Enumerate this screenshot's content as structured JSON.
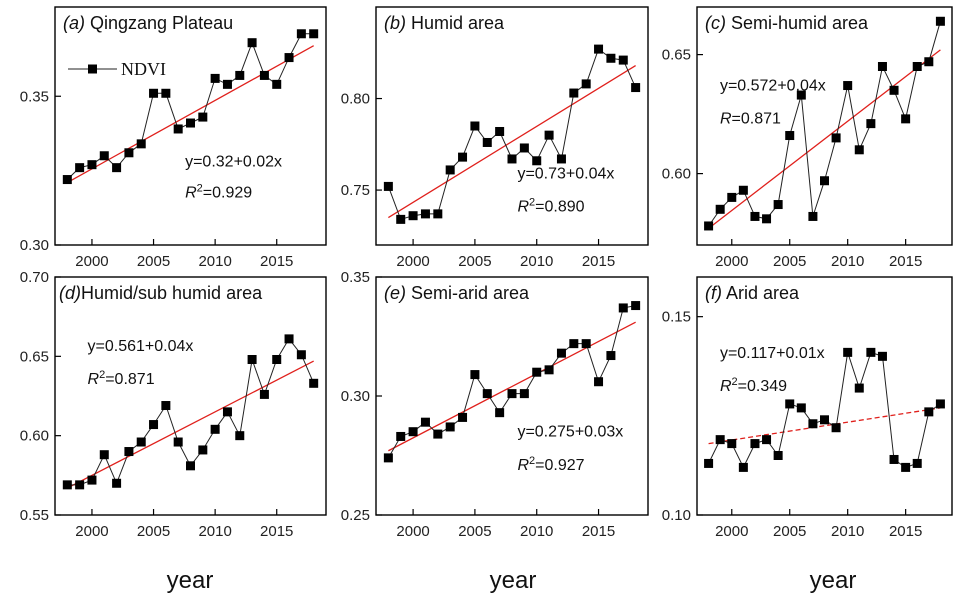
{
  "figure": {
    "xlabel": "year",
    "legend_label": "NDVI"
  },
  "chart_data": [
    {
      "type": "line",
      "title": "(a) Qingzang Plateau",
      "equation": "y=0.32+0.02x",
      "r2_label": "R²=0.929",
      "x": [
        1998,
        1999,
        2000,
        2001,
        2002,
        2003,
        2004,
        2005,
        2006,
        2007,
        2008,
        2009,
        2010,
        2011,
        2012,
        2013,
        2014,
        2015,
        2016,
        2017,
        2018
      ],
      "series": [
        {
          "name": "NDVI",
          "values": [
            0.322,
            0.326,
            0.327,
            0.33,
            0.326,
            0.331,
            0.334,
            0.351,
            0.351,
            0.339,
            0.341,
            0.343,
            0.356,
            0.354,
            0.357,
            0.368,
            0.357,
            0.354,
            0.363,
            0.371,
            0.371
          ]
        }
      ],
      "trend": [
        0.321,
        0.367
      ],
      "trend_style": "solid",
      "xlim": [
        1997,
        2019
      ],
      "xticks": [
        2000,
        2005,
        2010,
        2015
      ],
      "ylim": [
        0.3,
        0.38
      ],
      "yticks": [
        0.3,
        0.35
      ],
      "ytick_labels": [
        "0.30",
        "0.35"
      ],
      "show_legend": true
    },
    {
      "type": "line",
      "title": "(b) Humid area",
      "equation": "y=0.73+0.04x",
      "r2_label": "R²=0.890",
      "x": [
        1998,
        1999,
        2000,
        2001,
        2002,
        2003,
        2004,
        2005,
        2006,
        2007,
        2008,
        2009,
        2010,
        2011,
        2012,
        2013,
        2014,
        2015,
        2016,
        2017,
        2018
      ],
      "series": [
        {
          "name": "NDVI",
          "values": [
            0.752,
            0.734,
            0.736,
            0.737,
            0.737,
            0.761,
            0.768,
            0.785,
            0.776,
            0.782,
            0.767,
            0.773,
            0.766,
            0.78,
            0.767,
            0.803,
            0.808,
            0.827,
            0.822,
            0.821,
            0.806
          ]
        }
      ],
      "trend": [
        0.735,
        0.818
      ],
      "trend_style": "solid",
      "xlim": [
        1997,
        2019
      ],
      "xticks": [
        2000,
        2005,
        2010,
        2015
      ],
      "ylim": [
        0.72,
        0.85
      ],
      "yticks": [
        0.75,
        0.8
      ],
      "ytick_labels": [
        "0.75",
        "0.80"
      ],
      "show_legend": false
    },
    {
      "type": "line",
      "title": "(c) Semi-humid area",
      "equation": "y=0.572+0.04x",
      "r2_label": "R=0.871",
      "x": [
        1998,
        1999,
        2000,
        2001,
        2002,
        2003,
        2004,
        2005,
        2006,
        2007,
        2008,
        2009,
        2010,
        2011,
        2012,
        2013,
        2014,
        2015,
        2016,
        2017,
        2018
      ],
      "series": [
        {
          "name": "NDVI",
          "values": [
            0.578,
            0.585,
            0.59,
            0.593,
            0.582,
            0.581,
            0.587,
            0.616,
            0.633,
            0.582,
            0.597,
            0.615,
            0.637,
            0.61,
            0.621,
            0.645,
            0.635,
            0.623,
            0.645,
            0.647,
            0.664
          ]
        }
      ],
      "trend": [
        0.577,
        0.652
      ],
      "trend_style": "solid",
      "xlim": [
        1997,
        2019
      ],
      "xticks": [
        2000,
        2005,
        2010,
        2015
      ],
      "ylim": [
        0.57,
        0.67
      ],
      "yticks": [
        0.6,
        0.65
      ],
      "ytick_labels": [
        "0.60",
        "0.65"
      ],
      "show_legend": false
    },
    {
      "type": "line",
      "title": "(d)Humid/sub humid area",
      "equation": "y=0.561+0.04x",
      "r2_label": "R²=0.871",
      "x": [
        1998,
        1999,
        2000,
        2001,
        2002,
        2003,
        2004,
        2005,
        2006,
        2007,
        2008,
        2009,
        2010,
        2011,
        2012,
        2013,
        2014,
        2015,
        2016,
        2017,
        2018
      ],
      "series": [
        {
          "name": "NDVI",
          "values": [
            0.569,
            0.569,
            0.572,
            0.588,
            0.57,
            0.59,
            0.596,
            0.607,
            0.619,
            0.596,
            0.581,
            0.591,
            0.604,
            0.615,
            0.6,
            0.648,
            0.626,
            0.648,
            0.661,
            0.651,
            0.633
          ]
        }
      ],
      "trend": [
        0.567,
        0.647
      ],
      "trend_style": "solid",
      "xlim": [
        1997,
        2019
      ],
      "xticks": [
        2000,
        2005,
        2010,
        2015
      ],
      "ylim": [
        0.55,
        0.7
      ],
      "yticks": [
        0.55,
        0.6,
        0.65,
        0.7
      ],
      "ytick_labels": [
        "0.55",
        "0.60",
        "0.65",
        "0.70"
      ],
      "show_legend": false
    },
    {
      "type": "line",
      "title": "(e) Semi-arid area",
      "equation": "y=0.275+0.03x",
      "r2_label": "R²=0.927",
      "x": [
        1998,
        1999,
        2000,
        2001,
        2002,
        2003,
        2004,
        2005,
        2006,
        2007,
        2008,
        2009,
        2010,
        2011,
        2012,
        2013,
        2014,
        2015,
        2016,
        2017,
        2018
      ],
      "series": [
        {
          "name": "NDVI",
          "values": [
            0.274,
            0.283,
            0.285,
            0.289,
            0.284,
            0.287,
            0.291,
            0.309,
            0.301,
            0.293,
            0.301,
            0.301,
            0.31,
            0.311,
            0.318,
            0.322,
            0.322,
            0.306,
            0.317,
            0.337,
            0.338
          ]
        }
      ],
      "trend": [
        0.277,
        0.331
      ],
      "trend_style": "solid",
      "xlim": [
        1997,
        2019
      ],
      "xticks": [
        2000,
        2005,
        2010,
        2015
      ],
      "ylim": [
        0.25,
        0.35
      ],
      "yticks": [
        0.25,
        0.3,
        0.35
      ],
      "ytick_labels": [
        "0.25",
        "0.30",
        "0.35"
      ],
      "show_legend": false
    },
    {
      "type": "line",
      "title": "(f) Arid area",
      "equation": "y=0.117+0.01x",
      "r2_label": "R²=0.349",
      "x": [
        1998,
        1999,
        2000,
        2001,
        2002,
        2003,
        2004,
        2005,
        2006,
        2007,
        2008,
        2009,
        2010,
        2011,
        2012,
        2013,
        2014,
        2015,
        2016,
        2017,
        2018
      ],
      "series": [
        {
          "name": "NDVI",
          "values": [
            0.113,
            0.119,
            0.118,
            0.112,
            0.118,
            0.119,
            0.115,
            0.128,
            0.127,
            0.123,
            0.124,
            0.122,
            0.141,
            0.132,
            0.141,
            0.14,
            0.114,
            0.112,
            0.113,
            0.126,
            0.128
          ]
        }
      ],
      "trend": [
        0.118,
        0.127
      ],
      "trend_style": "dashed",
      "xlim": [
        1997,
        2019
      ],
      "xticks": [
        2000,
        2005,
        2010,
        2015
      ],
      "ylim": [
        0.1,
        0.16
      ],
      "yticks": [
        0.1,
        0.15
      ],
      "ytick_labels": [
        "0.10",
        "0.15"
      ],
      "show_legend": false
    }
  ]
}
